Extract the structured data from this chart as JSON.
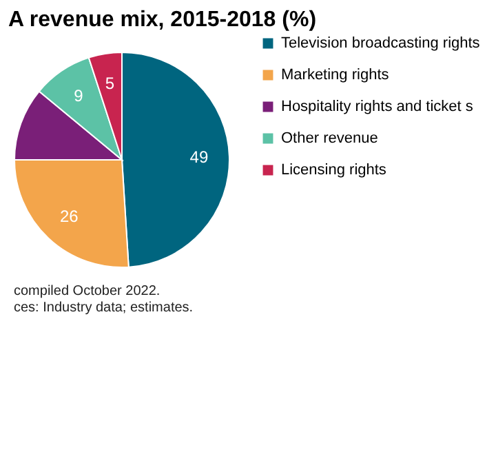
{
  "chart_data": {
    "type": "pie",
    "title": "A revenue mix, 2015-2018 (%)",
    "categories": [
      "Television broadcasting rights",
      "Marketing rights",
      "Hospitality rights and ticket s",
      "Other revenue",
      "Licensing rights"
    ],
    "values": [
      49,
      26,
      11,
      9,
      5
    ],
    "colors": [
      "#00657f",
      "#f3a54b",
      "#7a1f78",
      "#5cc2a6",
      "#c8244f"
    ],
    "value_labels": [
      "49",
      "26",
      null,
      "9",
      "5"
    ],
    "legend": "right",
    "annotations": [
      "compiled October 2022.",
      "ces: Industry data; estimates."
    ]
  }
}
